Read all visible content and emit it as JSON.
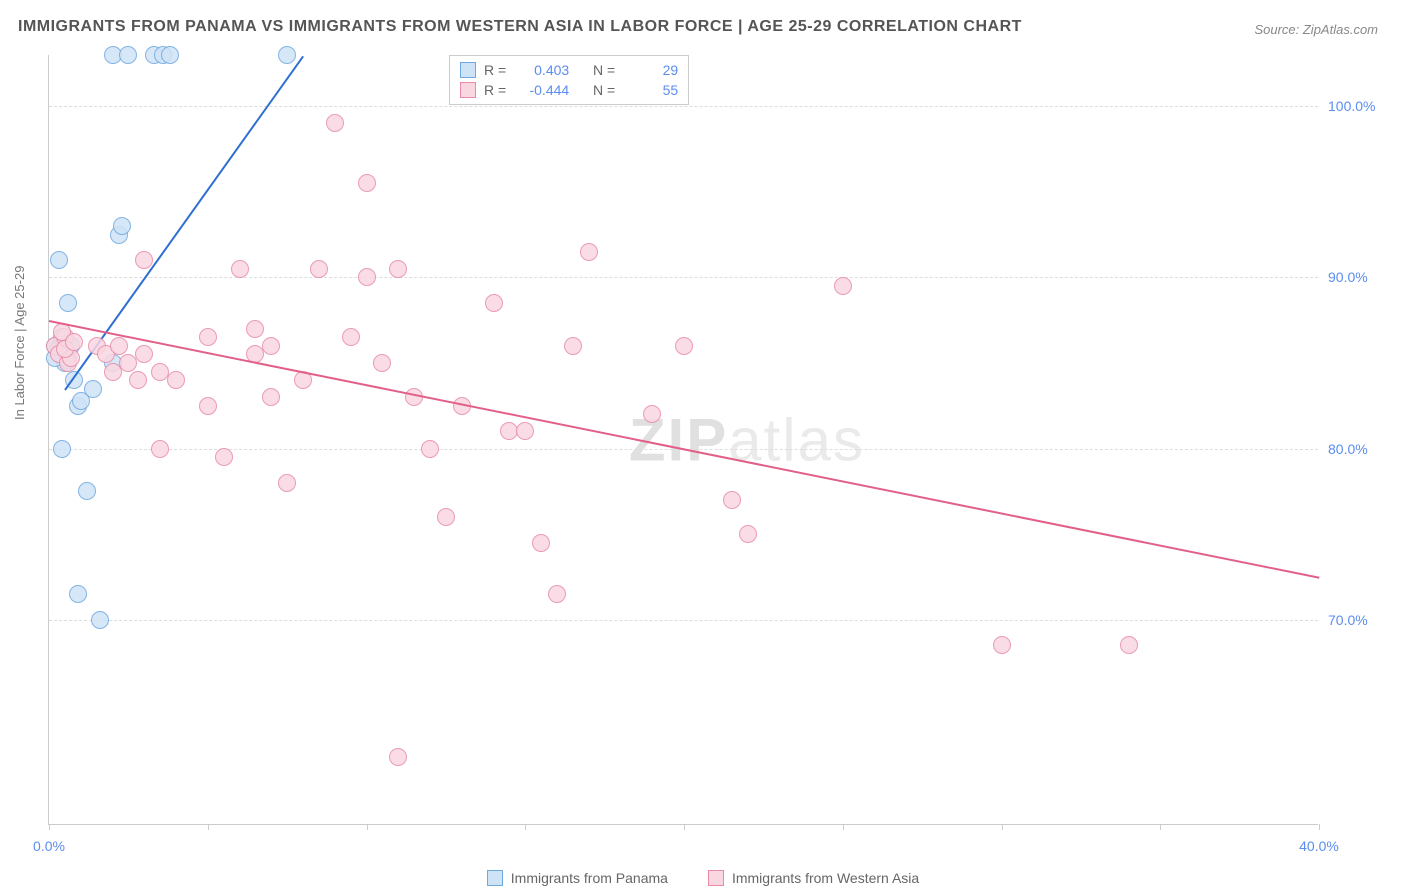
{
  "title": "IMMIGRANTS FROM PANAMA VS IMMIGRANTS FROM WESTERN ASIA IN LABOR FORCE | AGE 25-29 CORRELATION CHART",
  "source_label": "Source: ZipAtlas.com",
  "y_axis_label": "In Labor Force | Age 25-29",
  "watermark_a": "ZIP",
  "watermark_b": "atlas",
  "chart": {
    "xlim": [
      0,
      40
    ],
    "ylim": [
      58,
      103
    ],
    "x_ticks": [
      0,
      5,
      10,
      15,
      20,
      25,
      30,
      35,
      40
    ],
    "x_tick_labels": {
      "0": "0.0%",
      "40": "40.0%"
    },
    "y_ticks": [
      70,
      80,
      90,
      100
    ],
    "y_tick_labels": {
      "70": "70.0%",
      "80": "80.0%",
      "90": "90.0%",
      "100": "100.0%"
    },
    "background_color": "#ffffff",
    "grid_color": "#dddddd",
    "axis_color": "#cccccc",
    "tick_label_color": "#5b8def",
    "marker_radius": 9,
    "marker_stroke_width": 1.5,
    "series": [
      {
        "key": "panama",
        "label": "Immigrants from Panama",
        "fill": "#cfe3f7",
        "stroke": "#6ea8e0",
        "trend_color": "#2f6fd0",
        "R": "0.403",
        "N": "29",
        "trend": {
          "x1": 0.5,
          "y1": 83.5,
          "x2": 8.0,
          "y2": 103.0
        },
        "points": [
          [
            0.2,
            86.0
          ],
          [
            0.3,
            85.5
          ],
          [
            0.4,
            86.2
          ],
          [
            0.5,
            85.0
          ],
          [
            0.3,
            85.8
          ],
          [
            0.6,
            85.2
          ],
          [
            0.4,
            86.5
          ],
          [
            0.2,
            85.3
          ],
          [
            0.7,
            86.0
          ],
          [
            0.5,
            85.7
          ],
          [
            0.8,
            84.0
          ],
          [
            0.9,
            82.5
          ],
          [
            1.0,
            82.8
          ],
          [
            0.3,
            91.0
          ],
          [
            0.6,
            88.5
          ],
          [
            0.4,
            80.0
          ],
          [
            1.2,
            77.5
          ],
          [
            1.4,
            83.5
          ],
          [
            2.0,
            85.0
          ],
          [
            2.0,
            103.0
          ],
          [
            2.5,
            103.0
          ],
          [
            3.3,
            103.0
          ],
          [
            3.6,
            103.0
          ],
          [
            3.8,
            103.0
          ],
          [
            7.5,
            103.0
          ],
          [
            2.2,
            92.5
          ],
          [
            2.3,
            93.0
          ],
          [
            0.9,
            71.5
          ],
          [
            1.6,
            70.0
          ]
        ]
      },
      {
        "key": "western_asia",
        "label": "Immigrants from Western Asia",
        "fill": "#f9d7e1",
        "stroke": "#e88aa8",
        "trend_color": "#e26088",
        "R": "-0.444",
        "N": "55",
        "trend": {
          "x1": 0.0,
          "y1": 87.5,
          "x2": 40.0,
          "y2": 72.5
        },
        "points": [
          [
            0.2,
            86.0
          ],
          [
            0.3,
            85.5
          ],
          [
            0.5,
            86.5
          ],
          [
            0.6,
            85.0
          ],
          [
            0.4,
            86.8
          ],
          [
            0.7,
            85.3
          ],
          [
            0.5,
            85.8
          ],
          [
            0.8,
            86.2
          ],
          [
            1.5,
            86.0
          ],
          [
            1.8,
            85.5
          ],
          [
            2.0,
            84.5
          ],
          [
            2.2,
            86.0
          ],
          [
            2.5,
            85.0
          ],
          [
            2.8,
            84.0
          ],
          [
            3.0,
            85.5
          ],
          [
            3.5,
            84.5
          ],
          [
            3.0,
            91.0
          ],
          [
            3.5,
            80.0
          ],
          [
            4.0,
            84.0
          ],
          [
            5.0,
            86.5
          ],
          [
            5.0,
            82.5
          ],
          [
            5.5,
            79.5
          ],
          [
            6.0,
            90.5
          ],
          [
            6.5,
            87.0
          ],
          [
            6.5,
            85.5
          ],
          [
            7.0,
            83.0
          ],
          [
            7.0,
            86.0
          ],
          [
            7.5,
            78.0
          ],
          [
            8.0,
            84.0
          ],
          [
            8.5,
            90.5
          ],
          [
            9.0,
            99.0
          ],
          [
            9.5,
            86.5
          ],
          [
            10.0,
            95.5
          ],
          [
            10.5,
            85.0
          ],
          [
            11.0,
            90.5
          ],
          [
            11.5,
            83.0
          ],
          [
            12.0,
            80.0
          ],
          [
            12.5,
            76.0
          ],
          [
            13.0,
            82.5
          ],
          [
            14.0,
            88.5
          ],
          [
            14.5,
            81.0
          ],
          [
            15.0,
            81.0
          ],
          [
            15.5,
            74.5
          ],
          [
            16.0,
            71.5
          ],
          [
            16.5,
            86.0
          ],
          [
            17.0,
            91.5
          ],
          [
            19.0,
            82.0
          ],
          [
            20.0,
            86.0
          ],
          [
            21.5,
            77.0
          ],
          [
            22.0,
            75.0
          ],
          [
            25.0,
            89.5
          ],
          [
            30.0,
            68.5
          ],
          [
            34.0,
            68.5
          ],
          [
            11.0,
            62.0
          ],
          [
            10.0,
            90.0
          ]
        ]
      }
    ]
  },
  "stats_labels": {
    "R": "R =",
    "N": "N ="
  }
}
